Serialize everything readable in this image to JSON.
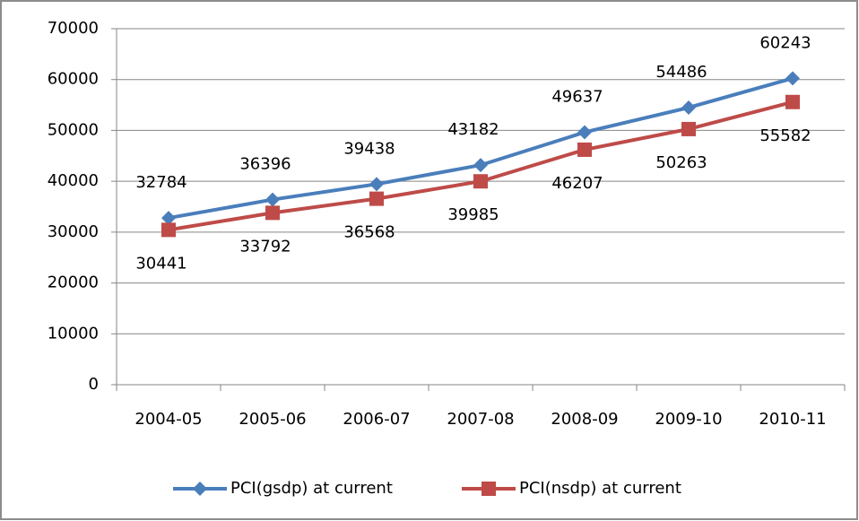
{
  "chart_data": {
    "type": "line",
    "categories": [
      "2004-05",
      "2005-06",
      "2006-07",
      "2007-08",
      "2008-09",
      "2009-10",
      "2010-11"
    ],
    "series": [
      {
        "name": "PCI(gsdp) at current",
        "color": "#4a7ebb",
        "marker": "diamond",
        "values": [
          32784,
          36396,
          39438,
          43182,
          49637,
          54486,
          60243
        ]
      },
      {
        "name": "PCI(nsdp) at current",
        "color": "#be4b48",
        "marker": "square",
        "values": [
          30441,
          33792,
          36568,
          39985,
          46207,
          50263,
          55582
        ]
      }
    ],
    "ylim": [
      0,
      70000
    ],
    "yticks": [
      0,
      10000,
      20000,
      30000,
      40000,
      50000,
      60000,
      70000
    ],
    "grid": true,
    "legend": "bottom"
  }
}
